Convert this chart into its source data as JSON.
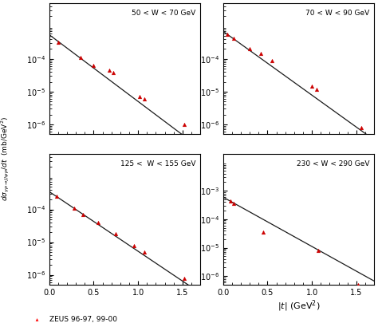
{
  "panels": [
    {
      "label": "50 < W < 70 GeV",
      "data_x": [
        0.1,
        0.35,
        0.5,
        0.68,
        0.72,
        1.02,
        1.07,
        1.52
      ],
      "data_y": [
        0.00032,
        0.00011,
        6.5e-05,
        4.5e-05,
        3.8e-05,
        7e-06,
        6e-06,
        1e-06
      ],
      "A": 0.00048,
      "b": 4.6,
      "ylim": [
        5e-07,
        0.005
      ],
      "show_ylabel": true,
      "show_yticklabels": true
    },
    {
      "label": "70 < W < 90 GeV",
      "data_x": [
        0.05,
        0.12,
        0.3,
        0.42,
        0.55,
        1.0,
        1.05,
        1.55
      ],
      "data_y": [
        0.00055,
        0.00042,
        0.0002,
        0.00015,
        9e-05,
        1.5e-05,
        1.2e-05,
        8e-07
      ],
      "A": 0.00065,
      "b": 4.5,
      "ylim": [
        5e-07,
        0.005
      ],
      "show_ylabel": false,
      "show_yticklabels": true
    },
    {
      "label": "125 <  W < 155 GeV",
      "data_x": [
        0.08,
        0.28,
        0.38,
        0.55,
        0.75,
        0.95,
        1.07,
        1.52
      ],
      "data_y": [
        0.00025,
        0.00011,
        7e-05,
        4e-05,
        1.8e-05,
        8e-06,
        5e-06,
        8e-07
      ],
      "A": 0.00032,
      "b": 4.2,
      "ylim": [
        5e-07,
        0.005
      ],
      "show_ylabel": true,
      "show_yticklabels": true
    },
    {
      "label": "230 < W < 290 GeV",
      "data_x": [
        0.08,
        0.12,
        0.45,
        1.07,
        1.52
      ],
      "data_y": [
        0.00045,
        0.00035,
        3.5e-05,
        8e-06,
        5e-07
      ],
      "A": 0.00055,
      "b": 4.0,
      "ylim": [
        5e-07,
        0.005
      ],
      "show_ylabel": false,
      "show_yticklabels": true
    }
  ],
  "ylabel": "d$\\sigma_{\\gamma p \\rightarrow J/\\psi p}$/dt  (mb/GeV$^2$)",
  "xlabel": "|t| (GeV$^2$)",
  "legend_label": "ZEUS 96-97, 99-00",
  "bg_color": "#ffffff",
  "line_color": "#1a1a1a",
  "marker_color": "#cc0000"
}
